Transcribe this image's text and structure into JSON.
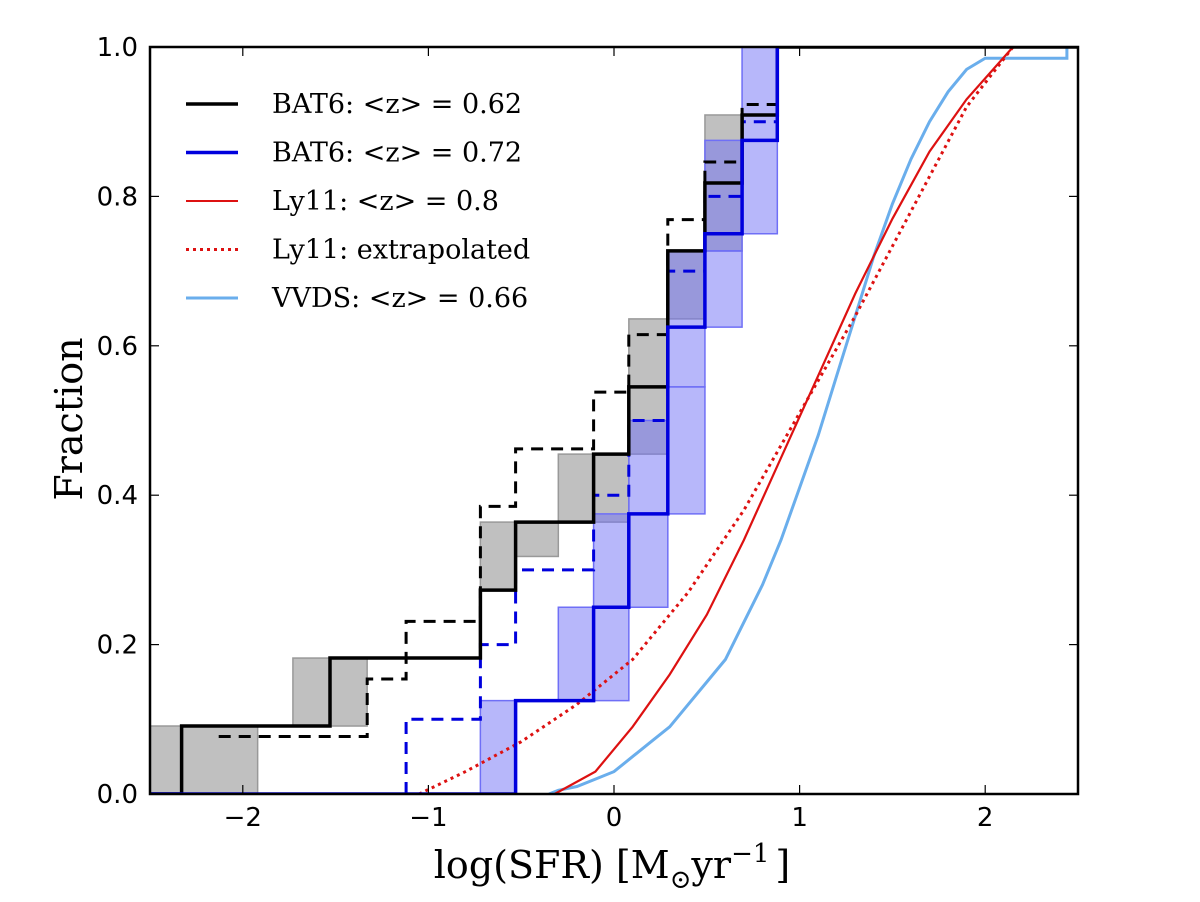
{
  "chart_data": {
    "type": "line",
    "xlabel_main": "log(SFR) [M",
    "xlabel_sub": "⊙",
    "xlabel_unit": "yr",
    "xlabel_sup": "−1",
    "xlabel_close": "]",
    "ylabel": "Fraction",
    "xlim": [
      -2.5,
      2.5
    ],
    "ylim": [
      0,
      1.0
    ],
    "xticks": [
      {
        "v": -2,
        "label": "−2"
      },
      {
        "v": -1,
        "label": "−1"
      },
      {
        "v": 0,
        "label": "0"
      },
      {
        "v": 1,
        "label": "1"
      },
      {
        "v": 2,
        "label": "2"
      }
    ],
    "yticks": [
      {
        "v": 0.0,
        "label": "0.0"
      },
      {
        "v": 0.2,
        "label": "0.2"
      },
      {
        "v": 0.4,
        "label": "0.4"
      },
      {
        "v": 0.6,
        "label": "0.6"
      },
      {
        "v": 0.8,
        "label": "0.8"
      },
      {
        "v": 1.0,
        "label": "1.0"
      }
    ],
    "legend_position": "upper-left",
    "legend": [
      {
        "label": "BAT6: <z> = 0.62",
        "color": "#000000",
        "style": "solid",
        "width": 3.5
      },
      {
        "label": "BAT6: <z> = 0.72",
        "color": "#0000dd",
        "style": "solid",
        "width": 3.5
      },
      {
        "label": "Ly11: <z> = 0.8",
        "color": "#dd1111",
        "style": "solid",
        "width": 2
      },
      {
        "label": "Ly11: extrapolated",
        "color": "#dd1111",
        "style": "dotted",
        "width": 3
      },
      {
        "label": "VVDS: <z> = 0.66",
        "color": "#6aaeec",
        "style": "solid",
        "width": 3
      }
    ],
    "bat6_062": {
      "color": "#000000",
      "band_color": "#999999",
      "solid_steps": [
        [
          -2.5,
          0
        ],
        [
          -2.33,
          0
        ],
        [
          -2.33,
          0.091
        ],
        [
          -1.53,
          0.091
        ],
        [
          -1.53,
          0.182
        ],
        [
          -0.72,
          0.182
        ],
        [
          -0.72,
          0.273
        ],
        [
          -0.53,
          0.273
        ],
        [
          -0.53,
          0.364
        ],
        [
          -0.11,
          0.364
        ],
        [
          -0.11,
          0.455
        ],
        [
          0.08,
          0.455
        ],
        [
          0.08,
          0.545
        ],
        [
          0.29,
          0.545
        ],
        [
          0.29,
          0.727
        ],
        [
          0.49,
          0.727
        ],
        [
          0.49,
          0.818
        ],
        [
          0.69,
          0.818
        ],
        [
          0.69,
          0.909
        ],
        [
          0.88,
          0.909
        ],
        [
          0.88,
          1.0
        ],
        [
          2.5,
          1.0
        ]
      ],
      "dashed_steps": [
        [
          -2.13,
          0.077
        ],
        [
          -1.73,
          0.077
        ],
        [
          -1.33,
          0.077
        ],
        [
          -1.33,
          0.154
        ],
        [
          -1.12,
          0.154
        ],
        [
          -1.12,
          0.231
        ],
        [
          -0.72,
          0.231
        ],
        [
          -0.72,
          0.385
        ],
        [
          -0.53,
          0.385
        ],
        [
          -0.53,
          0.462
        ],
        [
          -0.11,
          0.462
        ],
        [
          -0.11,
          0.538
        ],
        [
          0.08,
          0.538
        ],
        [
          0.08,
          0.615
        ],
        [
          0.29,
          0.615
        ],
        [
          0.29,
          0.769
        ],
        [
          0.49,
          0.769
        ],
        [
          0.49,
          0.846
        ],
        [
          0.69,
          0.846
        ],
        [
          0.69,
          0.923
        ],
        [
          0.88,
          0.923
        ]
      ],
      "bands": [
        {
          "x0": -2.5,
          "x1": -1.92,
          "y0": 0.0,
          "y1": 0.091
        },
        {
          "x0": -1.73,
          "x1": -1.33,
          "y0": 0.091,
          "y1": 0.182
        },
        {
          "x0": -0.72,
          "x1": -0.53,
          "y0": 0.273,
          "y1": 0.364
        },
        {
          "x0": -0.53,
          "x1": -0.3,
          "y0": 0.318,
          "y1": 0.364
        },
        {
          "x0": -0.3,
          "x1": 0.08,
          "y0": 0.364,
          "y1": 0.455
        },
        {
          "x0": 0.08,
          "x1": 0.29,
          "y0": 0.455,
          "y1": 0.636
        },
        {
          "x0": 0.29,
          "x1": 0.49,
          "y0": 0.636,
          "y1": 0.727
        },
        {
          "x0": 0.49,
          "x1": 0.69,
          "y0": 0.727,
          "y1": 0.818
        },
        {
          "x0": 0.49,
          "x1": 0.69,
          "y0": 0.818,
          "y1": 0.909
        }
      ]
    },
    "bat6_072": {
      "color": "#0000dd",
      "band_color": "#6f6ff6",
      "solid_steps": [
        [
          -2.5,
          0
        ],
        [
          -0.53,
          0
        ],
        [
          -0.53,
          0.125
        ],
        [
          -0.11,
          0.125
        ],
        [
          -0.11,
          0.25
        ],
        [
          0.08,
          0.25
        ],
        [
          0.08,
          0.375
        ],
        [
          0.29,
          0.375
        ],
        [
          0.29,
          0.625
        ],
        [
          0.49,
          0.625
        ],
        [
          0.49,
          0.75
        ],
        [
          0.69,
          0.75
        ],
        [
          0.69,
          0.875
        ],
        [
          0.88,
          0.875
        ],
        [
          0.88,
          1.0
        ]
      ],
      "dashed_steps": [
        [
          -1.12,
          0.0
        ],
        [
          -1.12,
          0.1
        ],
        [
          -0.72,
          0.1
        ],
        [
          -0.72,
          0.2
        ],
        [
          -0.53,
          0.2
        ],
        [
          -0.53,
          0.3
        ],
        [
          -0.11,
          0.3
        ],
        [
          -0.11,
          0.4
        ],
        [
          0.08,
          0.4
        ],
        [
          0.08,
          0.5
        ],
        [
          0.29,
          0.5
        ],
        [
          0.29,
          0.7
        ],
        [
          0.49,
          0.7
        ],
        [
          0.49,
          0.8
        ],
        [
          0.69,
          0.8
        ],
        [
          0.69,
          0.9
        ],
        [
          0.88,
          0.9
        ]
      ],
      "bands": [
        {
          "x0": -0.72,
          "x1": -0.53,
          "y0": 0.0,
          "y1": 0.125
        },
        {
          "x0": -0.3,
          "x1": 0.08,
          "y0": 0.125,
          "y1": 0.25
        },
        {
          "x0": -0.11,
          "x1": 0.29,
          "y0": 0.25,
          "y1": 0.375
        },
        {
          "x0": 0.08,
          "x1": 0.29,
          "y0": 0.375,
          "y1": 0.5
        },
        {
          "x0": 0.29,
          "x1": 0.49,
          "y0": 0.375,
          "y1": 0.545
        },
        {
          "x0": 0.29,
          "x1": 0.49,
          "y0": 0.545,
          "y1": 0.727
        },
        {
          "x0": 0.49,
          "x1": 0.69,
          "y0": 0.625,
          "y1": 0.727
        },
        {
          "x0": 0.49,
          "x1": 0.69,
          "y0": 0.727,
          "y1": 0.875
        },
        {
          "x0": 0.69,
          "x1": 0.88,
          "y0": 0.75,
          "y1": 0.875
        },
        {
          "x0": 0.69,
          "x1": 0.88,
          "y0": 0.875,
          "y1": 1.0
        }
      ]
    },
    "ly11": {
      "color": "#dd1111",
      "points": [
        [
          -0.32,
          0.0
        ],
        [
          -0.1,
          0.03
        ],
        [
          0.1,
          0.09
        ],
        [
          0.3,
          0.16
        ],
        [
          0.5,
          0.24
        ],
        [
          0.7,
          0.34
        ],
        [
          0.9,
          0.45
        ],
        [
          1.1,
          0.56
        ],
        [
          1.3,
          0.67
        ],
        [
          1.5,
          0.77
        ],
        [
          1.7,
          0.86
        ],
        [
          1.9,
          0.93
        ],
        [
          2.15,
          1.0
        ]
      ]
    },
    "ly11_extrapolated": {
      "color": "#dd1111",
      "points": [
        [
          -1.05,
          0.0
        ],
        [
          -0.8,
          0.03
        ],
        [
          -0.5,
          0.07
        ],
        [
          -0.2,
          0.12
        ],
        [
          0.1,
          0.18
        ],
        [
          0.4,
          0.27
        ],
        [
          0.7,
          0.38
        ],
        [
          1.0,
          0.51
        ],
        [
          1.3,
          0.64
        ],
        [
          1.6,
          0.78
        ],
        [
          1.9,
          0.92
        ],
        [
          2.15,
          1.0
        ]
      ]
    },
    "vvds": {
      "color": "#6aaeec",
      "steps": [
        [
          -0.35,
          0.0
        ],
        [
          -0.3,
          0.005
        ],
        [
          -0.2,
          0.01
        ],
        [
          -0.1,
          0.02
        ],
        [
          0.0,
          0.03
        ],
        [
          0.1,
          0.05
        ],
        [
          0.2,
          0.07
        ],
        [
          0.3,
          0.09
        ],
        [
          0.4,
          0.12
        ],
        [
          0.5,
          0.15
        ],
        [
          0.6,
          0.18
        ],
        [
          0.7,
          0.23
        ],
        [
          0.8,
          0.28
        ],
        [
          0.9,
          0.34
        ],
        [
          1.0,
          0.41
        ],
        [
          1.1,
          0.48
        ],
        [
          1.2,
          0.56
        ],
        [
          1.3,
          0.64
        ],
        [
          1.4,
          0.72
        ],
        [
          1.5,
          0.79
        ],
        [
          1.6,
          0.85
        ],
        [
          1.7,
          0.9
        ],
        [
          1.8,
          0.94
        ],
        [
          1.9,
          0.97
        ],
        [
          2.0,
          0.985
        ],
        [
          2.44,
          0.985
        ],
        [
          2.44,
          1.0
        ],
        [
          2.5,
          1.0
        ]
      ]
    }
  }
}
